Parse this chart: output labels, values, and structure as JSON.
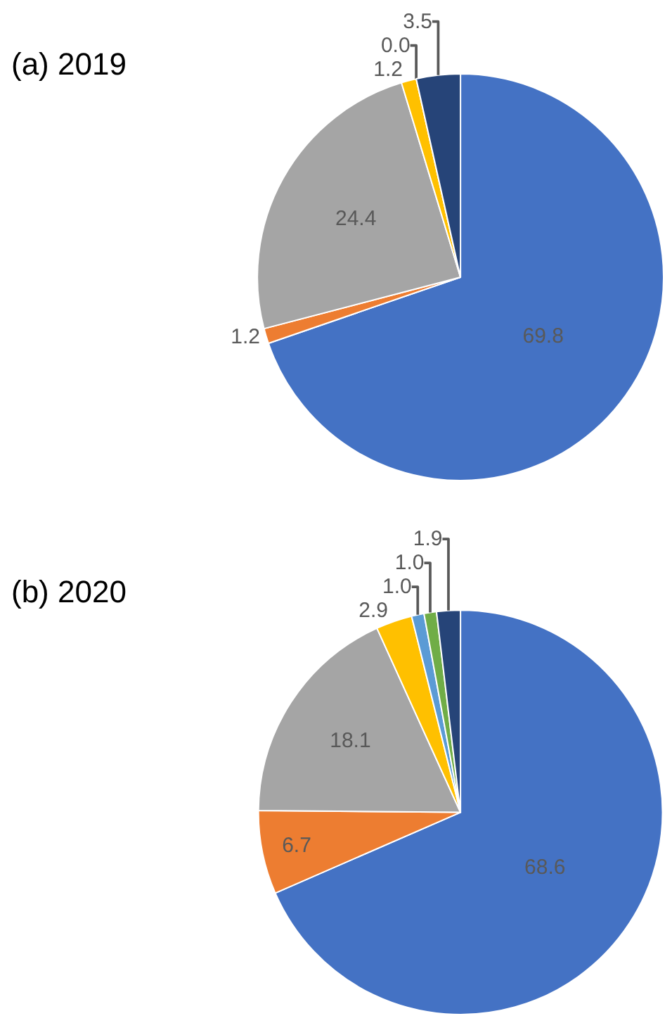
{
  "chart_data": [
    {
      "type": "pie",
      "title": "(a) 2019",
      "categories": [
        null,
        null,
        null,
        null,
        null,
        null
      ],
      "values": [
        69.8,
        1.2,
        24.4,
        1.2,
        0.0,
        3.5
      ],
      "value_labels": [
        "69.8",
        "1.2",
        "24.4",
        "1.2",
        "0.0",
        "3.5"
      ],
      "colors": [
        "#4472c4",
        "#ed7d31",
        "#a5a5a5",
        "#ffc000",
        "#5b9bd5",
        "#264478"
      ],
      "legend": false
    },
    {
      "type": "pie",
      "title": "(b) 2020",
      "categories": [
        null,
        null,
        null,
        null,
        null,
        null,
        null
      ],
      "values": [
        68.6,
        6.7,
        18.1,
        2.9,
        1.0,
        1.0,
        1.9
      ],
      "value_labels": [
        "68.6",
        "6.7",
        "18.1",
        "2.9",
        "1.0",
        "1.0",
        "1.9"
      ],
      "colors": [
        "#4472c4",
        "#ed7d31",
        "#a5a5a5",
        "#ffc000",
        "#5b9bd5",
        "#70ad47",
        "#264478"
      ],
      "legend": false
    }
  ]
}
